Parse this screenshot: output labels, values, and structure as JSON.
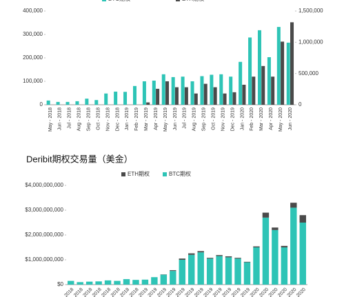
{
  "chart_data": [
    {
      "type": "bar",
      "categories": [
        "May - 2018",
        "Jun - 2018",
        "Jul - 2018",
        "Aug - 2018",
        "Sep - 2018",
        "Oct - 2018",
        "Nov - 2018",
        "Dec - 2018",
        "Jan - 2019",
        "Feb - 2019",
        "Mar - 2019",
        "Apr - 2019",
        "May - 2019",
        "Jun - 2019",
        "Jul - 2019",
        "Aug - 2019",
        "Sep - 2019",
        "Oct - 2019",
        "Nov - 2019",
        "Dec - 2019",
        "Jan - 2020",
        "Feb - 2020",
        "Mar - 2020",
        "Apr - 2020",
        "May - 2020",
        "Jun - 2020"
      ],
      "series": [
        {
          "name": "BTC期权",
          "color": "#2ec4b6",
          "values": [
            18000,
            12000,
            12000,
            15000,
            26000,
            20000,
            48000,
            56000,
            55000,
            80000,
            100000,
            103000,
            130000,
            118000,
            120000,
            100000,
            122000,
            128000,
            130000,
            120000,
            183000,
            287000,
            318000,
            203000,
            332000,
            265000
          ]
        },
        {
          "name": "ETH期权",
          "color": "#4a4a4a",
          "axis": "y2",
          "values": [
            0,
            0,
            0,
            0,
            0,
            0,
            0,
            0,
            0,
            0,
            37500,
            255000,
            375000,
            280000,
            280000,
            180000,
            335000,
            280000,
            180000,
            200000,
            320000,
            450000,
            620000,
            450000,
            1010000,
            1320000
          ]
        }
      ],
      "ylim": [
        0,
        400000
      ],
      "yticks": [
        0,
        {
          "value": 100000,
          "label": "100,000"
        },
        {
          "value": 200000,
          "label": "200,000"
        },
        {
          "value": 300000,
          "label": "300,000"
        },
        {
          "value": 400000,
          "label": "400,000"
        }
      ],
      "y2lim": [
        0,
        1500000
      ],
      "y2ticks": [
        0,
        {
          "value": 500000,
          "label": "500,000"
        },
        {
          "value": 1000000,
          "label": "1,000,000"
        },
        {
          "value": 1500000,
          "label": "1,500,000"
        }
      ],
      "legend": "top"
    },
    {
      "type": "stacked_bar",
      "title": "Deribit期权交易量（美金）",
      "categories": [
        "May - 2018",
        "Jun - 2018",
        "Jul - 2018",
        "Aug - 2018",
        "Sep - 2018",
        "Oct - 2018",
        "Nov - 2018",
        "Dec - 2018",
        "Jan - 2019",
        "Feb - 2019",
        "Mar - 2019",
        "Apr - 2019",
        "May - 2019",
        "Jun - 2019",
        "Jul - 2019",
        "Aug - 2019",
        "Sep - 2019",
        "Oct - 2019",
        "Nov - 2019",
        "Dec - 2019",
        "Jan - 2020",
        "Feb - 2020",
        "Mar - 2020",
        "Apr - 2020",
        "May - 2020",
        "Jun - 2020"
      ],
      "series": [
        {
          "name": "BTC期权",
          "color": "#2ec4b6",
          "values": [
            150000000,
            100000000,
            120000000,
            130000000,
            170000000,
            150000000,
            220000000,
            190000000,
            200000000,
            300000000,
            400000000,
            550000000,
            1000000000,
            1200000000,
            1300000000,
            1050000000,
            1150000000,
            1100000000,
            1050000000,
            900000000,
            1500000000,
            2700000000,
            2200000000,
            1500000000,
            3100000000,
            2500000000
          ]
        },
        {
          "name": "ETH期权",
          "color": "#4a4a4a",
          "values": [
            0,
            0,
            0,
            0,
            0,
            0,
            0,
            0,
            0,
            0,
            10000000,
            30000000,
            50000000,
            60000000,
            50000000,
            30000000,
            40000000,
            40000000,
            30000000,
            20000000,
            40000000,
            200000000,
            100000000,
            60000000,
            200000000,
            300000000
          ]
        }
      ],
      "ylim": [
        0,
        4000000000
      ],
      "yticks": [
        {
          "value": 0,
          "label": "$0"
        },
        {
          "value": 1000000000,
          "label": "$1,000,000,000"
        },
        {
          "value": 2000000000,
          "label": "$2,000,000,000"
        },
        {
          "value": 3000000000,
          "label": "$3,000,000,000"
        },
        {
          "value": 4000000000,
          "label": "$4,000,000,000"
        }
      ],
      "legend": "top"
    }
  ]
}
